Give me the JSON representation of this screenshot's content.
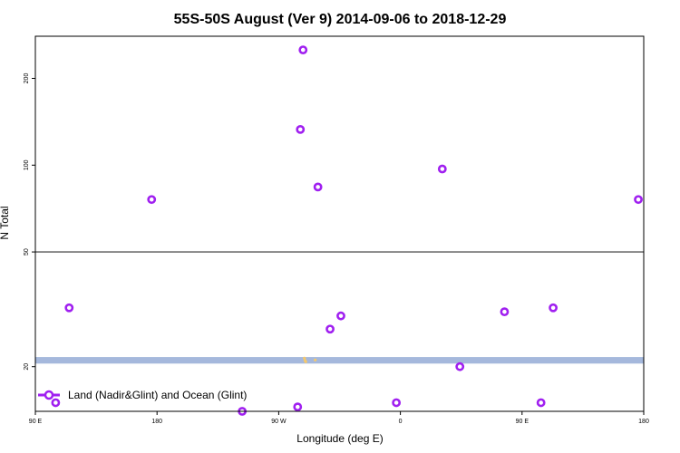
{
  "chart_data": {
    "type": "scatter",
    "title": "55S-50S August (Ver 9)   2014-09-06 to 2018-12-29",
    "xlabel": "Longitude (deg E)",
    "ylabel": "N Total",
    "x_scale": "longitude, wraps from 90 E through 180 and 0 to 180",
    "x_unwrapped_range": [
      90,
      540
    ],
    "x_ticks": [
      {
        "value": 90,
        "label": "90 E"
      },
      {
        "value": 180,
        "label": "180"
      },
      {
        "value": 270,
        "label": "90 W"
      },
      {
        "value": 360,
        "label": "0"
      },
      {
        "value": 450,
        "label": "90 E"
      },
      {
        "value": 540,
        "label": "180"
      }
    ],
    "y_scale": "log",
    "ylim": [
      14,
      280
    ],
    "y_ticks": [
      20,
      50,
      100,
      200
    ],
    "reference_line_y": 50,
    "band": {
      "y_low": 20.5,
      "y_high": 21.6,
      "color": "#a5b8dc"
    },
    "band_markers": [
      {
        "x": 289,
        "y": 21.4
      },
      {
        "x": 289.5,
        "y": 21.0
      },
      {
        "x": 290,
        "y": 20.8
      },
      {
        "x": 297,
        "y": 21.1
      }
    ],
    "band_marker_color": "#f5c86b",
    "series": [
      {
        "name": "Land (Nadir&Glint) and Ocean (Glint)",
        "color": "#a020f0",
        "points": [
          {
            "x": 105,
            "y": 15
          },
          {
            "x": 115,
            "y": 32
          },
          {
            "x": 176,
            "y": 76
          },
          {
            "x": 243,
            "y": 14
          },
          {
            "x": 284,
            "y": 14.5
          },
          {
            "x": 286,
            "y": 133
          },
          {
            "x": 288,
            "y": 251
          },
          {
            "x": 299,
            "y": 84
          },
          {
            "x": 308,
            "y": 27
          },
          {
            "x": 316,
            "y": 30
          },
          {
            "x": 357,
            "y": 15
          },
          {
            "x": 391,
            "y": 97
          },
          {
            "x": 404,
            "y": 20
          },
          {
            "x": 437,
            "y": 31
          },
          {
            "x": 464,
            "y": 15
          },
          {
            "x": 473,
            "y": 32
          },
          {
            "x": 536,
            "y": 76
          }
        ]
      }
    ],
    "legend_position": "bottom-left",
    "grid": false
  }
}
